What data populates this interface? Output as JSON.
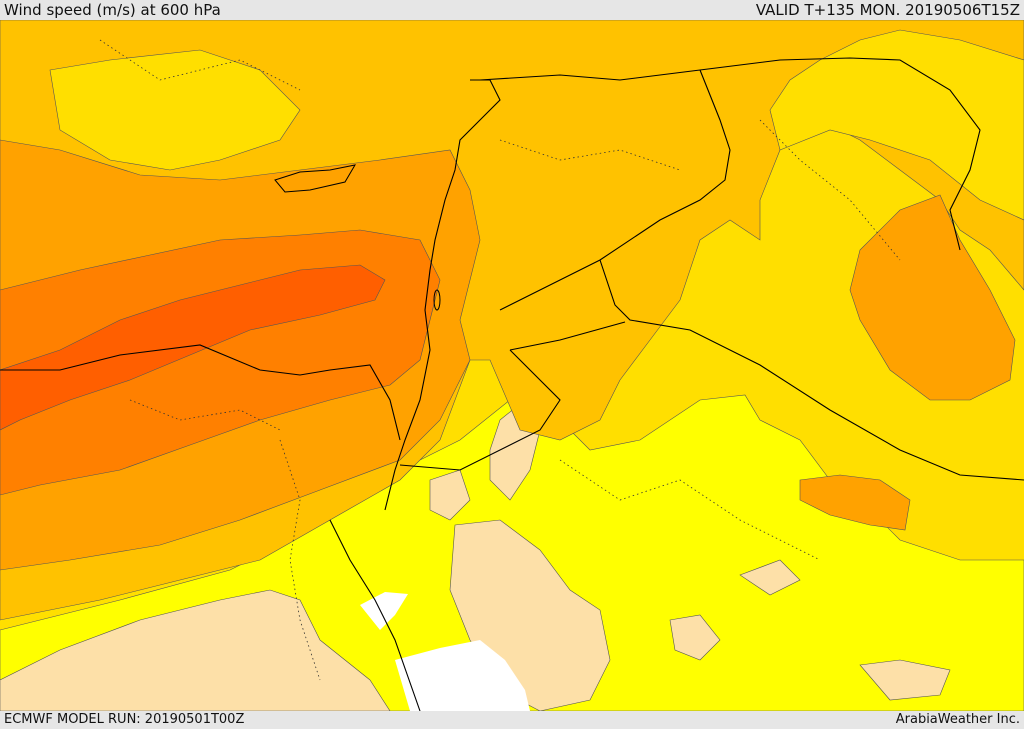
{
  "header": {
    "title": "Wind speed (m/s) at 600 hPa",
    "valid": "VALID T+135 MON. 20190506T15Z"
  },
  "footer": {
    "model_run": "ECMWF MODEL RUN: 20190501T00Z",
    "credit": "ArabiaWeather Inc."
  },
  "map": {
    "variable": "wind speed",
    "level": "600 hPa",
    "units": "m/s",
    "colors": {
      "calm_tan": "#fde0a8",
      "yellow": "#ffff00",
      "gold": "#ffdf00",
      "light_orange": "#ffc200",
      "orange": "#ffa200",
      "dark_orange": "#ff8000",
      "max_red_orange": "#ff5f00",
      "no_data": "#ffffff",
      "contour": "#555555",
      "border": "#000000"
    }
  }
}
